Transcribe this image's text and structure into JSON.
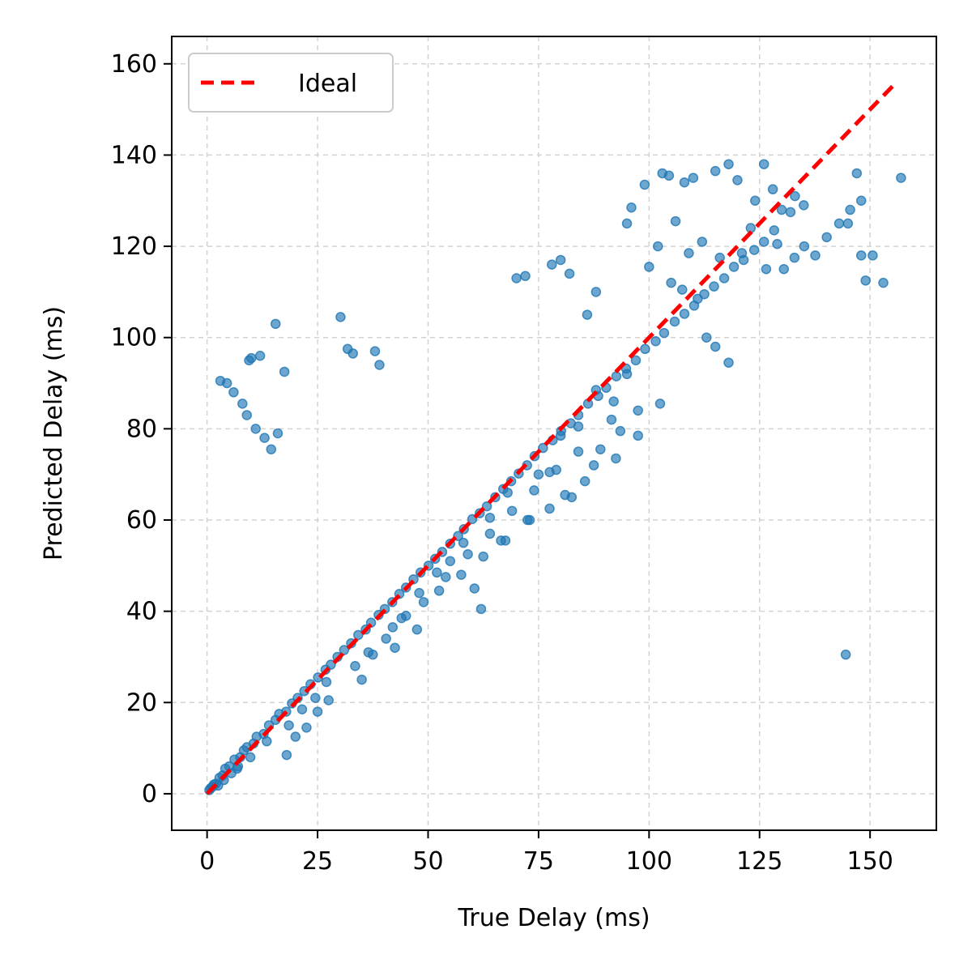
{
  "chart_data": {
    "type": "scatter",
    "xlabel": "True Delay (ms)",
    "ylabel": "Predicted Delay (ms)",
    "xlim": [
      -8,
      165
    ],
    "ylim": [
      -8,
      166
    ],
    "xticks": [
      0,
      25,
      50,
      75,
      100,
      125,
      150
    ],
    "yticks": [
      0,
      20,
      40,
      60,
      80,
      100,
      120,
      140,
      160
    ],
    "grid": true,
    "legend_position": "top-left",
    "colors": {
      "points": "#1f77b4",
      "ideal": "#ff0000",
      "grid": "#d3d3d3"
    },
    "series": [
      {
        "name": "",
        "kind": "points",
        "x": [
          0.5,
          1.2,
          2.0,
          2.8,
          3.5,
          4.1,
          5.0,
          6.2,
          7.5,
          8.3,
          9.0,
          10.5,
          11.2,
          12.8,
          14.0,
          15.5,
          16.3,
          17.9,
          19.2,
          20.5,
          22.0,
          23.4,
          25.1,
          26.8,
          28.0,
          29.5,
          31.0,
          32.6,
          34.2,
          35.9,
          37.1,
          38.8,
          40.2,
          41.9,
          43.5,
          45.0,
          46.7,
          48.3,
          50.1,
          51.6,
          53.2,
          55.0,
          56.8,
          58.1,
          60.0,
          61.7,
          63.3,
          65.2,
          67.0,
          68.8,
          70.5,
          72.4,
          74.1,
          76.0,
          78.2,
          80.1,
          82.3,
          84.0,
          86.2,
          88.5,
          90.3,
          92.6,
          94.8,
          97.0,
          99.1,
          101.5,
          103.4,
          105.8,
          108.0,
          110.2,
          112.5,
          114.7,
          117.0,
          119.2,
          121.4,
          123.8,
          126.0,
          128.3,
          130.5,
          132.9,
          135.1,
          137.6,
          140.2,
          143.0,
          145.5,
          148.0,
          150.6,
          153.0,
          157.0,
          3.0,
          4.5,
          6.0,
          8.0,
          9.5,
          11.0,
          13.0,
          14.5,
          15.5,
          16.0,
          17.5,
          12.0,
          10.0,
          9.0,
          30.2,
          31.8,
          33.0,
          38.0,
          39.0,
          70.0,
          72.0,
          78.0,
          80.0,
          82.0,
          86.0,
          88.0,
          95.0,
          96.0,
          99.0,
          103.0,
          104.5,
          108.0,
          110.0,
          115.0,
          118.0,
          120.0,
          124.0,
          126.0,
          128.0,
          130.0,
          132.0,
          133.0,
          144.5,
          105.0,
          107.5,
          111.0,
          113.0,
          115.0,
          118.0,
          121.0,
          123.0,
          126.5,
          129.0,
          135.0,
          145.0,
          147.0,
          148.0,
          149.0,
          100.0,
          102.0,
          106.0,
          109.0,
          112.0,
          116.0,
          95.0,
          92.0,
          88.0,
          84.0,
          80.0,
          75.0,
          68.0,
          64.0,
          58.0,
          55.0,
          52.0,
          48.0,
          45.0,
          42.0,
          60.5,
          62.0,
          66.5,
          73.0,
          77.5,
          81.0,
          85.5,
          89.0,
          91.5,
          93.5,
          97.5,
          102.5,
          25.0,
          27.5,
          20.0,
          18.0,
          22.5,
          35.0,
          37.5,
          42.5,
          47.5,
          52.5,
          57.5,
          62.5,
          67.5,
          72.5,
          77.5,
          82.5,
          87.5,
          92.5,
          97.5,
          5.5,
          7.0,
          2.5,
          1.5,
          0.8,
          3.8,
          6.8,
          9.8,
          13.5,
          18.5,
          21.5,
          24.5,
          27.0,
          33.5,
          36.5,
          40.5,
          44.0,
          49.0,
          54.0,
          59.0,
          64.0,
          69.0,
          74.0,
          79.0,
          84.0
        ],
        "y": [
          0.8,
          1.5,
          2.2,
          3.5,
          4.0,
          5.5,
          6.0,
          7.5,
          8.0,
          9.5,
          10.2,
          11.0,
          12.5,
          13.1,
          15.0,
          16.2,
          17.5,
          18.0,
          19.8,
          21.0,
          22.5,
          24.0,
          25.5,
          27.2,
          28.3,
          30.0,
          31.5,
          33.0,
          34.8,
          36.0,
          37.5,
          39.2,
          40.5,
          42.0,
          43.8,
          45.2,
          47.0,
          48.5,
          50.0,
          51.5,
          53.0,
          54.8,
          56.5,
          58.0,
          60.2,
          61.5,
          63.0,
          65.0,
          66.8,
          68.5,
          70.2,
          72.0,
          74.0,
          75.8,
          77.5,
          79.5,
          81.2,
          83.0,
          85.5,
          87.2,
          89.0,
          91.5,
          93.2,
          95.0,
          97.5,
          99.2,
          101.0,
          103.5,
          105.2,
          107.0,
          109.5,
          111.2,
          113.0,
          115.5,
          117.0,
          119.2,
          121.0,
          123.5,
          115.0,
          117.5,
          120.0,
          118.0,
          122.0,
          125.0,
          128.0,
          130.0,
          118.0,
          112.0,
          135.0,
          90.5,
          90.0,
          88.0,
          85.5,
          95.0,
          80.0,
          78.0,
          75.5,
          103.0,
          79.0,
          92.5,
          96.0,
          95.5,
          83.0,
          104.5,
          97.5,
          96.5,
          97.0,
          94.0,
          113.0,
          113.5,
          116.0,
          117.0,
          114.0,
          105.0,
          110.0,
          125.0,
          128.5,
          133.5,
          136.0,
          135.5,
          134.0,
          135.0,
          136.5,
          138.0,
          134.5,
          130.0,
          138.0,
          132.5,
          128.0,
          127.5,
          131.0,
          30.5,
          112.0,
          110.5,
          108.5,
          100.0,
          98.0,
          94.5,
          118.5,
          124.0,
          115.0,
          120.5,
          129.0,
          125.0,
          136.0,
          118.0,
          112.5,
          115.5,
          120.0,
          125.5,
          118.5,
          121.0,
          117.5,
          92.0,
          86.0,
          88.5,
          80.5,
          78.5,
          70.0,
          66.0,
          60.5,
          55.0,
          51.0,
          48.5,
          44.0,
          39.0,
          36.5,
          45.0,
          40.5,
          55.5,
          60.0,
          70.5,
          65.5,
          68.5,
          75.5,
          82.0,
          79.5,
          84.0,
          85.5,
          18.0,
          20.5,
          12.5,
          8.5,
          14.5,
          25.0,
          30.5,
          32.0,
          36.0,
          44.5,
          48.0,
          52.0,
          55.5,
          60.0,
          62.5,
          65.0,
          72.0,
          73.5,
          78.5,
          4.5,
          6.0,
          1.8,
          2.0,
          1.2,
          3.0,
          5.5,
          8.0,
          11.5,
          15.0,
          18.5,
          21.0,
          24.5,
          28.0,
          31.0,
          34.0,
          38.5,
          42.0,
          47.5,
          52.5,
          57.0,
          62.0,
          66.5,
          71.0,
          75.0
        ]
      },
      {
        "name": "Ideal",
        "kind": "line",
        "x": [
          0,
          156
        ],
        "y": [
          0,
          156
        ]
      }
    ]
  }
}
